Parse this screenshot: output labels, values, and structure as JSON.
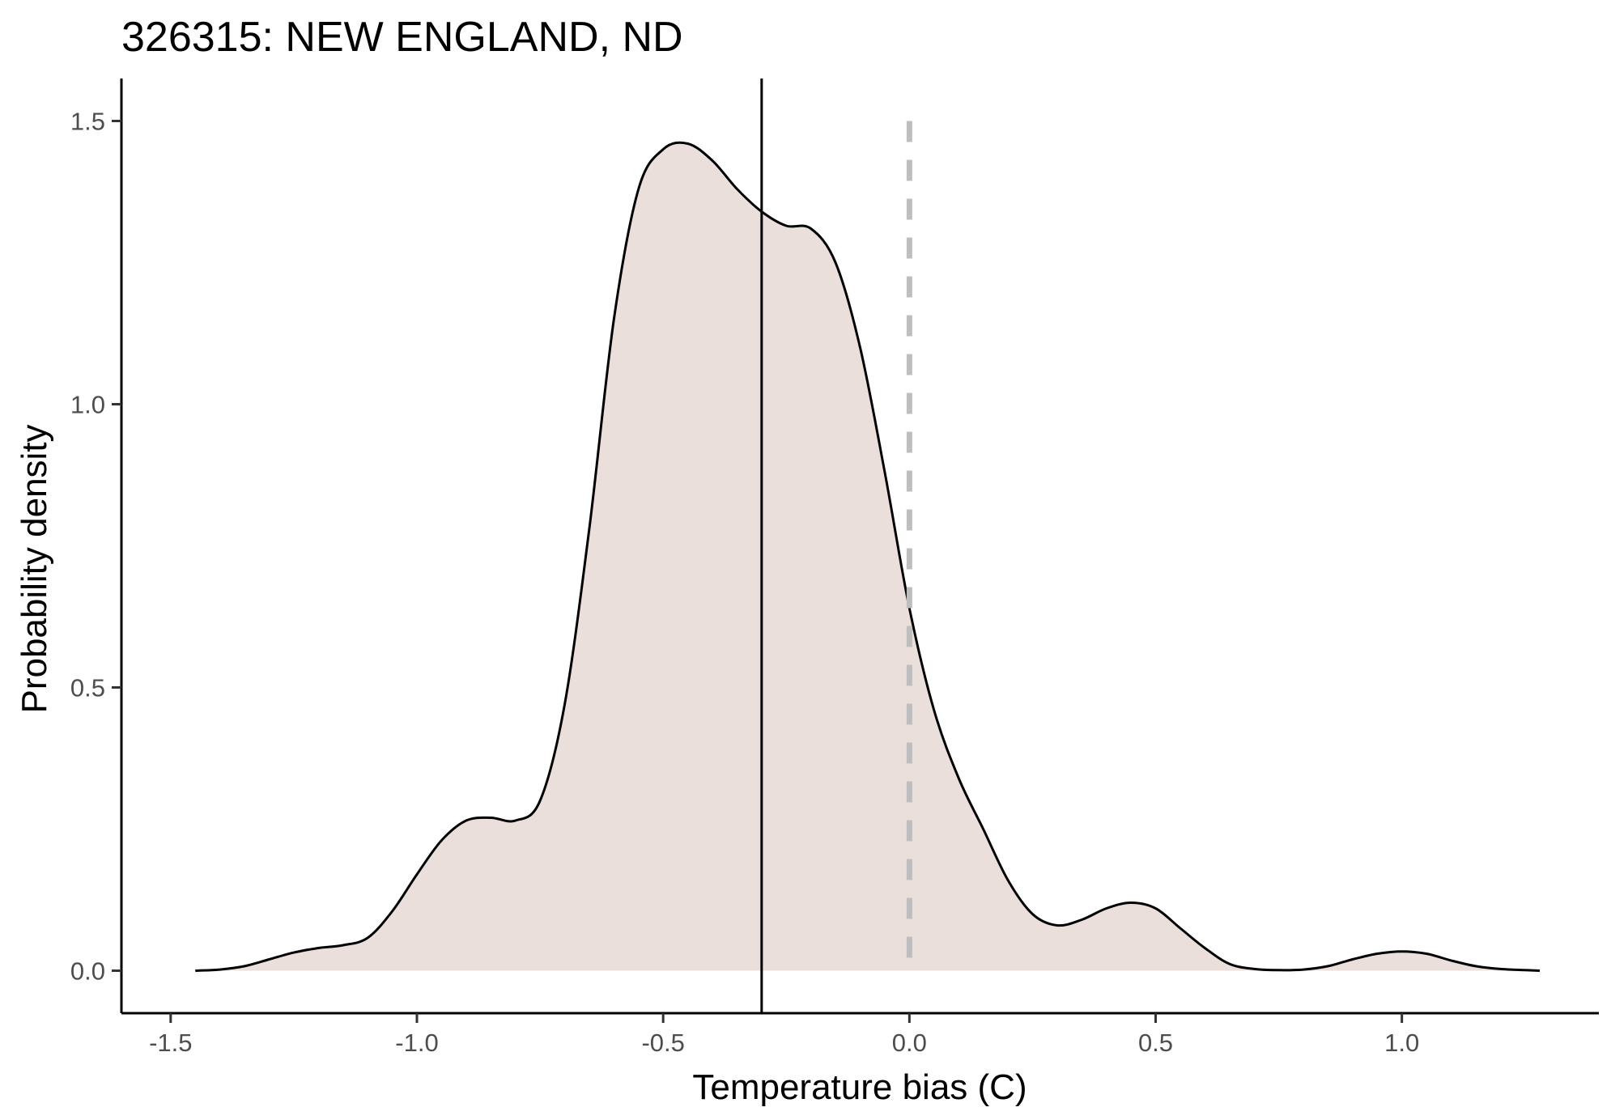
{
  "chart_data": {
    "type": "area",
    "title": "326315: NEW ENGLAND, ND",
    "xlabel": "Temperature bias (C)",
    "ylabel": "Probability density",
    "xlim": [
      -1.6,
      1.4
    ],
    "ylim": [
      -0.075,
      1.575
    ],
    "x_ticks": [
      -1.5,
      -1.0,
      -0.5,
      0.0,
      0.5,
      1.0
    ],
    "x_tick_labels": [
      "-1.5",
      "-1.0",
      "-0.5",
      "0.0",
      "0.5",
      "1.0"
    ],
    "y_ticks": [
      0.0,
      0.5,
      1.0,
      1.5
    ],
    "y_tick_labels": [
      "0.0",
      "0.5",
      "1.0",
      "1.5"
    ],
    "grid": false,
    "fill_color": "#ebdfdc",
    "line_color": "#000000",
    "reference_lines": [
      {
        "x": -0.3,
        "style": "solid",
        "color": "#000000"
      },
      {
        "x": 0.0,
        "style": "dashed",
        "color": "#bebebe"
      }
    ],
    "series": [
      {
        "x": [
          -1.45,
          -1.4,
          -1.35,
          -1.3,
          -1.25,
          -1.2,
          -1.15,
          -1.1,
          -1.05,
          -1.0,
          -0.95,
          -0.9,
          -0.85,
          -0.8,
          -0.75,
          -0.7,
          -0.65,
          -0.6,
          -0.55,
          -0.5,
          -0.45,
          -0.4,
          -0.35,
          -0.3,
          -0.25,
          -0.2,
          -0.15,
          -0.1,
          -0.05,
          0.0,
          0.05,
          0.1,
          0.15,
          0.2,
          0.25,
          0.3,
          0.35,
          0.4,
          0.45,
          0.5,
          0.55,
          0.6,
          0.65,
          0.7,
          0.75,
          0.8,
          0.85,
          0.9,
          0.95,
          1.0,
          1.05,
          1.1,
          1.15,
          1.2,
          1.25,
          1.28
        ],
        "y": [
          0.0,
          0.002,
          0.008,
          0.02,
          0.032,
          0.04,
          0.045,
          0.058,
          0.105,
          0.17,
          0.23,
          0.265,
          0.27,
          0.265,
          0.3,
          0.47,
          0.78,
          1.15,
          1.38,
          1.45,
          1.46,
          1.43,
          1.38,
          1.34,
          1.315,
          1.31,
          1.25,
          1.1,
          0.88,
          0.64,
          0.46,
          0.34,
          0.25,
          0.16,
          0.1,
          0.08,
          0.09,
          0.11,
          0.12,
          0.11,
          0.075,
          0.04,
          0.012,
          0.003,
          0.001,
          0.002,
          0.008,
          0.02,
          0.03,
          0.034,
          0.03,
          0.018,
          0.008,
          0.003,
          0.001,
          0.0
        ]
      }
    ]
  }
}
